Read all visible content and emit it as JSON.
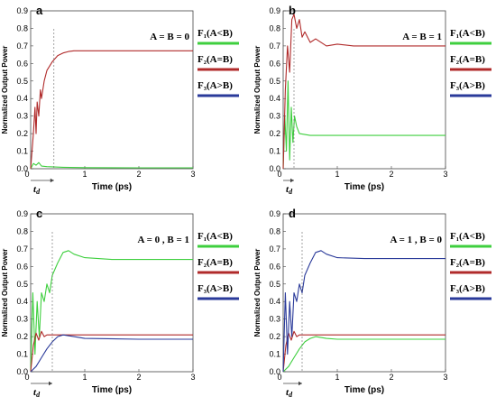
{
  "chart_data": [
    {
      "type": "line",
      "panel": "a",
      "condition": "A = B = 0",
      "xlabel": "Time (ps)",
      "ylabel": "Normalized Output Power",
      "xlim": [
        0,
        3
      ],
      "ylim": [
        0,
        0.9
      ],
      "xticks": [
        "0",
        "1",
        "2",
        "3"
      ],
      "yticks": [
        "0.0",
        "0.1",
        "0.2",
        "0.3",
        "0.4",
        "0.5",
        "0.6",
        "0.7",
        "0.8",
        "0.9"
      ],
      "td_label": "t",
      "td_sub": "d",
      "td_value": 0.43,
      "series": [
        {
          "name": "F₁(A<B)",
          "color": "#3ecf3e",
          "x": [
            0,
            0.05,
            0.1,
            0.15,
            0.2,
            0.3,
            0.45,
            0.6,
            1.0,
            2.0,
            3.0
          ],
          "y": [
            0,
            0.03,
            0.02,
            0.035,
            0.015,
            0.012,
            0.01,
            0.008,
            0.006,
            0.005,
            0.005
          ]
        },
        {
          "name": "F₂(A=B)",
          "color": "#b02a2a",
          "x": [
            0,
            0.05,
            0.08,
            0.1,
            0.12,
            0.15,
            0.18,
            0.2,
            0.25,
            0.3,
            0.4,
            0.5,
            0.6,
            0.7,
            0.8,
            0.9,
            1.0,
            1.5,
            2.0,
            3.0
          ],
          "y": [
            0,
            0.2,
            0.35,
            0.2,
            0.38,
            0.3,
            0.45,
            0.4,
            0.5,
            0.56,
            0.61,
            0.645,
            0.66,
            0.668,
            0.672,
            0.672,
            0.672,
            0.672,
            0.672,
            0.672
          ]
        },
        {
          "name": "F₃(A>B)",
          "color": "#2a3a9a",
          "x": [],
          "y": []
        }
      ]
    },
    {
      "type": "line",
      "panel": "b",
      "condition": "A = B = 1",
      "xlabel": "Time (ps)",
      "ylabel": "Normalized Output Power",
      "xlim": [
        0,
        3
      ],
      "ylim": [
        0,
        0.9
      ],
      "xticks": [
        "0",
        "1",
        "2",
        "3"
      ],
      "yticks": [
        "0.0",
        "0.1",
        "0.2",
        "0.3",
        "0.4",
        "0.5",
        "0.6",
        "0.7",
        "0.8",
        "0.9"
      ],
      "td_label": "t",
      "td_sub": "d",
      "td_value": 0.2,
      "series": [
        {
          "name": "F₁(A<B)",
          "color": "#3ecf3e",
          "x": [
            0,
            0.03,
            0.06,
            0.09,
            0.12,
            0.15,
            0.18,
            0.21,
            0.25,
            0.3,
            0.4,
            0.5,
            0.7,
            1.0,
            2.0,
            3.0
          ],
          "y": [
            0,
            0.3,
            0.1,
            0.5,
            0.05,
            0.35,
            0.15,
            0.3,
            0.24,
            0.2,
            0.195,
            0.19,
            0.19,
            0.19,
            0.19,
            0.19
          ]
        },
        {
          "name": "F₂(A=B)",
          "color": "#b02a2a",
          "x": [
            0,
            0.04,
            0.08,
            0.12,
            0.16,
            0.2,
            0.25,
            0.3,
            0.35,
            0.4,
            0.5,
            0.6,
            0.8,
            1.0,
            1.3,
            2.0,
            3.0
          ],
          "y": [
            0,
            0.45,
            0.7,
            0.55,
            0.85,
            0.88,
            0.8,
            0.85,
            0.75,
            0.78,
            0.72,
            0.74,
            0.7,
            0.71,
            0.7,
            0.7,
            0.7
          ]
        },
        {
          "name": "F₃(A>B)",
          "color": "#2a3a9a",
          "x": [],
          "y": []
        }
      ]
    },
    {
      "type": "line",
      "panel": "c",
      "condition": "A = 0 , B = 1",
      "xlabel": "Time (ps)",
      "ylabel": "Normalized Output Power",
      "xlim": [
        0,
        3
      ],
      "ylim": [
        0,
        0.9
      ],
      "xticks": [
        "0",
        "1",
        "2",
        "3"
      ],
      "yticks": [
        "0.0",
        "0.1",
        "0.2",
        "0.3",
        "0.4",
        "0.5",
        "0.6",
        "0.7",
        "0.8",
        "0.9"
      ],
      "td_label": "t",
      "td_sub": "d",
      "td_value": 0.4,
      "series": [
        {
          "name": "F₁(A<B)",
          "color": "#3ecf3e",
          "x": [
            0,
            0.04,
            0.08,
            0.12,
            0.16,
            0.2,
            0.25,
            0.3,
            0.35,
            0.4,
            0.5,
            0.6,
            0.7,
            0.8,
            1.0,
            1.5,
            2.0,
            3.0
          ],
          "y": [
            0,
            0.45,
            0.1,
            0.4,
            0.2,
            0.45,
            0.4,
            0.5,
            0.45,
            0.55,
            0.62,
            0.68,
            0.69,
            0.67,
            0.65,
            0.64,
            0.64,
            0.64
          ]
        },
        {
          "name": "F₂(A=B)",
          "color": "#b02a2a",
          "x": [
            0,
            0.05,
            0.1,
            0.15,
            0.2,
            0.25,
            0.3,
            0.4,
            0.5,
            0.6,
            0.8,
            1.0,
            2.0,
            3.0
          ],
          "y": [
            0,
            0.15,
            0.22,
            0.18,
            0.23,
            0.2,
            0.21,
            0.21,
            0.21,
            0.21,
            0.21,
            0.21,
            0.21,
            0.21
          ]
        },
        {
          "name": "F₃(A>B)",
          "color": "#2a3a9a",
          "x": [
            0,
            0.1,
            0.2,
            0.3,
            0.4,
            0.5,
            0.6,
            0.8,
            1.0,
            2.0,
            3.0
          ],
          "y": [
            0,
            0.03,
            0.08,
            0.13,
            0.17,
            0.2,
            0.21,
            0.2,
            0.19,
            0.185,
            0.185
          ]
        }
      ]
    },
    {
      "type": "line",
      "panel": "d",
      "condition": "A = 1 , B = 0",
      "xlabel": "Time (ps)",
      "ylabel": "Normalized Output Power",
      "xlim": [
        0,
        3
      ],
      "ylim": [
        0,
        0.9
      ],
      "xticks": [
        "0",
        "1",
        "2",
        "3"
      ],
      "yticks": [
        "0.0",
        "0.1",
        "0.2",
        "0.3",
        "0.4",
        "0.5",
        "0.6",
        "0.7",
        "0.8",
        "0.9"
      ],
      "td_label": "t",
      "td_sub": "d",
      "td_value": 0.35,
      "series": [
        {
          "name": "F₁(A<B)",
          "color": "#3ecf3e",
          "x": [
            0,
            0.1,
            0.2,
            0.3,
            0.4,
            0.5,
            0.6,
            0.8,
            1.0,
            2.0,
            3.0
          ],
          "y": [
            0,
            0.03,
            0.08,
            0.13,
            0.17,
            0.19,
            0.2,
            0.19,
            0.185,
            0.185,
            0.185
          ]
        },
        {
          "name": "F₂(A=B)",
          "color": "#b02a2a",
          "x": [
            0,
            0.05,
            0.1,
            0.15,
            0.2,
            0.25,
            0.3,
            0.4,
            0.5,
            0.6,
            0.8,
            1.0,
            2.0,
            3.0
          ],
          "y": [
            0,
            0.15,
            0.22,
            0.18,
            0.23,
            0.2,
            0.21,
            0.21,
            0.21,
            0.21,
            0.21,
            0.21,
            0.21,
            0.21
          ]
        },
        {
          "name": "F₃(A>B)",
          "color": "#2a3a9a",
          "x": [
            0,
            0.04,
            0.08,
            0.12,
            0.16,
            0.2,
            0.25,
            0.3,
            0.35,
            0.4,
            0.5,
            0.6,
            0.7,
            0.8,
            1.0,
            1.5,
            2.0,
            3.0
          ],
          "y": [
            0,
            0.45,
            0.1,
            0.4,
            0.2,
            0.45,
            0.4,
            0.5,
            0.45,
            0.55,
            0.62,
            0.68,
            0.69,
            0.67,
            0.65,
            0.645,
            0.645,
            0.645
          ]
        }
      ]
    }
  ]
}
